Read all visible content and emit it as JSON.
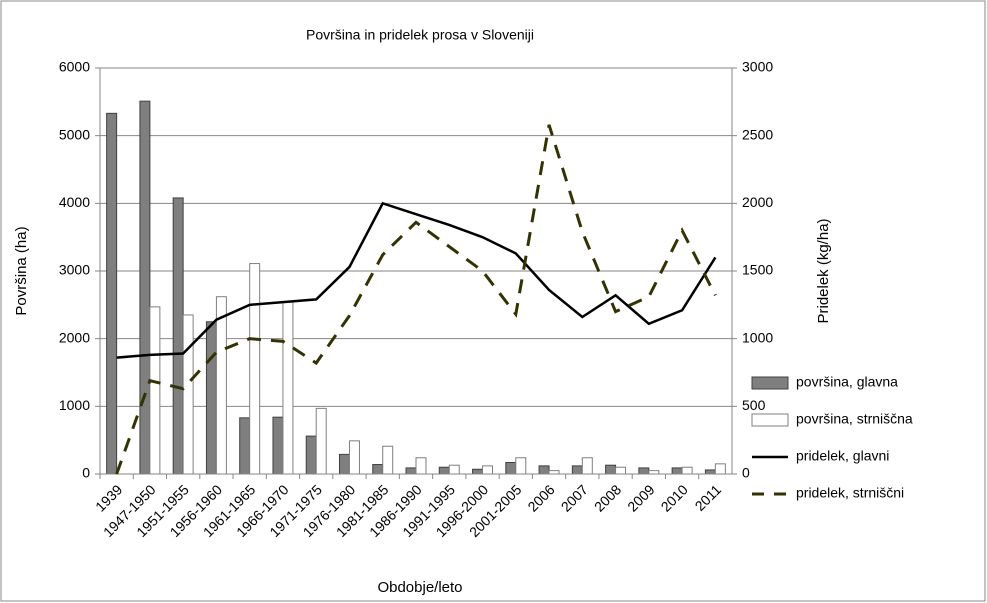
{
  "chart_data": {
    "type": "bar",
    "title": "Površina in pridelek prosa v Sloveniji",
    "x_label": "Obdobje/leto",
    "y_label": "Površina (ha)",
    "y2_label": "Pridelek (kg/ha)",
    "categories": [
      "1939",
      "1947-1950",
      "1951-1955",
      "1956-1960",
      "1961-1965",
      "1966-1970",
      "1971-1975",
      "1976-1980",
      "1981-1985",
      "1986-1990",
      "1991-1995",
      "1996-2000",
      "2001-2005",
      "2006",
      "2007",
      "2008",
      "2009",
      "2010",
      "2011"
    ],
    "series": [
      {
        "name": "površina, glavna",
        "type": "bar",
        "color": "#7f7f7f",
        "values": [
          5330,
          5510,
          4080,
          2250,
          830,
          840,
          560,
          290,
          140,
          90,
          100,
          70,
          170,
          120,
          120,
          130,
          90,
          90,
          60
        ]
      },
      {
        "name": "površina, strniščna",
        "type": "bar",
        "color": "#ffffff",
        "values": [
          0,
          2470,
          2350,
          2620,
          3110,
          2540,
          970,
          490,
          410,
          240,
          130,
          120,
          240,
          50,
          240,
          100,
          50,
          100,
          150
        ]
      },
      {
        "name": "pridelek, glavni",
        "type": "line",
        "axis": "y2",
        "color": "#000000",
        "values": [
          860,
          880,
          890,
          1140,
          1250,
          1270,
          1290,
          1530,
          2000,
          1920,
          1840,
          1750,
          1630,
          1360,
          1160,
          1320,
          1110,
          1210,
          1600
        ]
      },
      {
        "name": "pridelek, strniščni",
        "type": "line",
        "axis": "y2",
        "dashed": true,
        "color": "#333300",
        "values": [
          0,
          690,
          630,
          900,
          1000,
          980,
          820,
          1170,
          1620,
          1860,
          1680,
          1500,
          1180,
          2580,
          1790,
          1200,
          1310,
          1800,
          1320
        ]
      }
    ],
    "ylim": [
      0,
      6000
    ],
    "yticks": [
      0,
      1000,
      2000,
      3000,
      4000,
      5000,
      6000
    ],
    "y2lim": [
      0,
      3000
    ],
    "y2ticks": [
      0,
      500,
      1000,
      1500,
      2000,
      2500,
      3000
    ],
    "grid": true
  }
}
